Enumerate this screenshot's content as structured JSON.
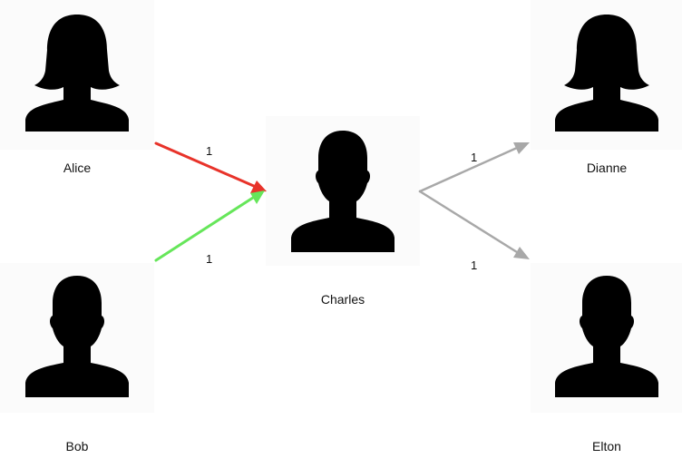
{
  "people": {
    "alice": {
      "name": "Alice",
      "icon": "female-person-icon"
    },
    "bob": {
      "name": "Bob",
      "icon": "male-person-icon"
    },
    "charles": {
      "name": "Charles",
      "icon": "male-person-icon"
    },
    "dianne": {
      "name": "Dianne",
      "icon": "female-person-icon"
    },
    "elton": {
      "name": "Elton",
      "icon": "male-person-icon"
    }
  },
  "edges": [
    {
      "from": "Alice",
      "to": "Charles",
      "label": "1",
      "color": "#e8332a"
    },
    {
      "from": "Bob",
      "to": "Charles",
      "label": "1",
      "color": "#66e65a"
    },
    {
      "from": "Charles",
      "to": "Dianne",
      "label": "1",
      "color": "#a8a8a8"
    },
    {
      "from": "Charles",
      "to": "Elton",
      "label": "1",
      "color": "#a8a8a8"
    }
  ]
}
